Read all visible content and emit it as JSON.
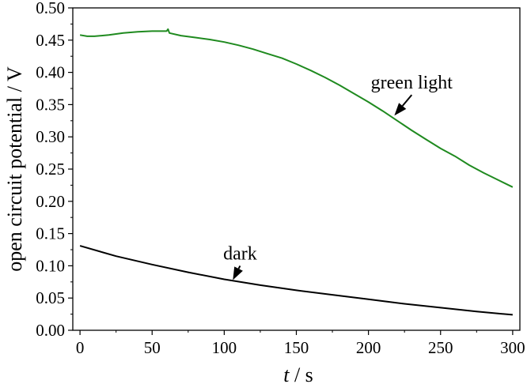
{
  "chart_data": {
    "type": "line",
    "xlabel_italic": "t",
    "xlabel_rest": " / s",
    "ylabel": "open circuit potential / V",
    "xlim": [
      -5,
      305
    ],
    "ylim": [
      0.0,
      0.5
    ],
    "x_ticks": [
      0,
      50,
      100,
      150,
      200,
      250,
      300
    ],
    "y_ticks": [
      "0.00",
      "0.05",
      "0.10",
      "0.15",
      "0.20",
      "0.25",
      "0.30",
      "0.35",
      "0.40",
      "0.45",
      "0.50"
    ],
    "grid": false,
    "series": [
      {
        "name": "green light",
        "color": "#1f8a1f",
        "x": [
          0,
          5,
          10,
          20,
          30,
          40,
          50,
          55,
          60,
          61,
          62,
          70,
          80,
          90,
          100,
          110,
          120,
          130,
          140,
          150,
          160,
          170,
          180,
          190,
          200,
          210,
          220,
          230,
          240,
          250,
          260,
          270,
          280,
          290,
          300
        ],
        "y": [
          0.458,
          0.456,
          0.456,
          0.458,
          0.461,
          0.463,
          0.464,
          0.464,
          0.464,
          0.467,
          0.461,
          0.457,
          0.454,
          0.451,
          0.447,
          0.442,
          0.436,
          0.429,
          0.422,
          0.413,
          0.403,
          0.392,
          0.38,
          0.367,
          0.354,
          0.34,
          0.325,
          0.31,
          0.296,
          0.282,
          0.27,
          0.256,
          0.244,
          0.233,
          0.222
        ]
      },
      {
        "name": "dark",
        "color": "#000000",
        "x": [
          0,
          25,
          50,
          75,
          100,
          125,
          150,
          175,
          200,
          225,
          250,
          275,
          300
        ],
        "y": [
          0.131,
          0.115,
          0.102,
          0.09,
          0.079,
          0.07,
          0.062,
          0.055,
          0.048,
          0.041,
          0.035,
          0.029,
          0.024
        ]
      }
    ],
    "annotations": [
      {
        "text": "green light",
        "arrow_from": [
          230,
          0.365
        ],
        "arrow_to": [
          218,
          0.333
        ]
      },
      {
        "text": "dark",
        "arrow_from": [
          111,
          0.1
        ],
        "arrow_to": [
          106,
          0.078
        ]
      }
    ]
  }
}
